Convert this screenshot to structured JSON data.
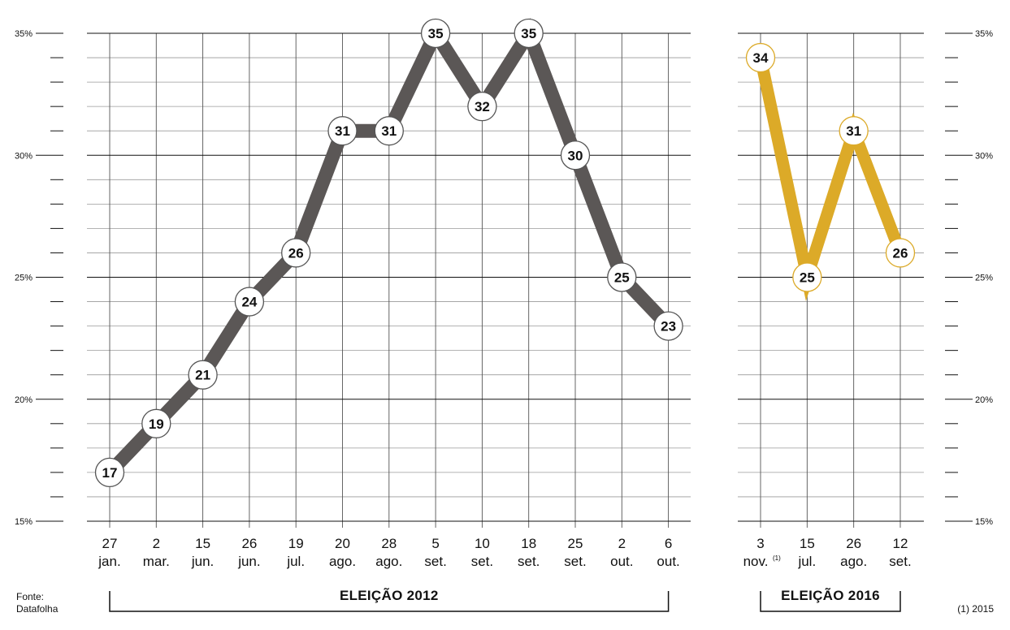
{
  "chart_data": [
    {
      "type": "line",
      "section_label": "ELEIÇÃO 2012",
      "x": [
        {
          "day": "27",
          "month": "jan."
        },
        {
          "day": "2",
          "month": "mar."
        },
        {
          "day": "15",
          "month": "jun."
        },
        {
          "day": "26",
          "month": "jun."
        },
        {
          "day": "19",
          "month": "jul."
        },
        {
          "day": "20",
          "month": "ago."
        },
        {
          "day": "28",
          "month": "ago."
        },
        {
          "day": "5",
          "month": "set."
        },
        {
          "day": "10",
          "month": "set."
        },
        {
          "day": "18",
          "month": "set."
        },
        {
          "day": "25",
          "month": "set."
        },
        {
          "day": "2",
          "month": "out."
        },
        {
          "day": "6",
          "month": "out."
        }
      ],
      "values": [
        17,
        19,
        21,
        24,
        26,
        31,
        31,
        35,
        32,
        35,
        30,
        25,
        23
      ],
      "color": "#5b5756",
      "ylim": [
        15,
        35
      ],
      "y_ticks": [
        "15%",
        "20%",
        "25%",
        "30%",
        "35%"
      ],
      "grid": true
    },
    {
      "type": "line",
      "section_label": "ELEIÇÃO 2016",
      "x": [
        {
          "day": "3",
          "month": "nov.",
          "note": "(1)"
        },
        {
          "day": "15",
          "month": "jul."
        },
        {
          "day": "26",
          "month": "ago."
        },
        {
          "day": "12",
          "month": "set."
        }
      ],
      "values": [
        34,
        25,
        31,
        26
      ],
      "color": "#dcaa28",
      "ylim": [
        15,
        35
      ],
      "y_ticks": [
        "15%",
        "20%",
        "25%",
        "30%",
        "35%"
      ],
      "grid": true
    }
  ],
  "source": {
    "label": "Fonte:",
    "name": "Datafolha"
  },
  "footnote": "(1) 2015"
}
